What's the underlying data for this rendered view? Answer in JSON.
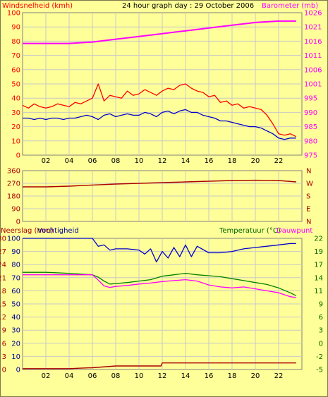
{
  "header": {
    "left_label": "Windsnelheid (kmh)",
    "title": "24 hour graph day : 29 October 2006",
    "right_label": "Barometer (mb)"
  },
  "bottom_header": {
    "left_label_1": "Neerslag (mm)",
    "left_label_2": "Vochtigheid",
    "right_label_1": "Temperatuur (°C)",
    "right_label_2": "Dauwpunt"
  },
  "colors": {
    "background": "#ffff99",
    "grid": "#c8c8c8",
    "wind_gust": "#ff0000",
    "wind_avg": "#0000cc",
    "barometer": "#ff00ff",
    "direction": "#aa0000",
    "humidity": "#0000cc",
    "temperature": "#008000",
    "dewpoint": "#ff00ff",
    "rain": "#aa0000",
    "label_left_top": "#ff0000",
    "label_right_top": "#ff00ff",
    "label_dir": "#aa0000",
    "label_rain": "#aa0000",
    "label_hum": "#000099",
    "label_temp": "#006600",
    "label_dew": "#ff00ff"
  },
  "x_ticks": [
    "02",
    "04",
    "06",
    "08",
    "10",
    "12",
    "14",
    "16",
    "18",
    "20",
    "22"
  ],
  "direction_labels": [
    "N",
    "W",
    "S",
    "E",
    "N"
  ],
  "chart_data": [
    {
      "type": "line",
      "title": "24 hour graph day : 29 October 2006",
      "xlabel": "",
      "ylabel": "Windsnelheid (kmh)",
      "y2label": "Barometer (mb)",
      "xlim": [
        0,
        24
      ],
      "ylim": [
        0,
        100
      ],
      "y_ticks": [
        0,
        10,
        20,
        30,
        40,
        50,
        60,
        70,
        80,
        90,
        100
      ],
      "y2lim": [
        975,
        1026
      ],
      "y2_ticks": [
        975,
        980,
        985,
        990,
        995,
        1001,
        1006,
        1011,
        1016,
        1021,
        1026
      ],
      "grid": true,
      "series": [
        {
          "name": "Windsnelheid gust",
          "axis": "left",
          "x": [
            0,
            0.5,
            1,
            1.5,
            2,
            2.5,
            3,
            3.5,
            4,
            4.5,
            5,
            5.5,
            6,
            6.5,
            7,
            7.5,
            8,
            8.5,
            9,
            9.5,
            10,
            10.5,
            11,
            11.5,
            12,
            12.5,
            13,
            13.5,
            14,
            14.5,
            15,
            15.5,
            16,
            16.5,
            17,
            17.5,
            18,
            18.5,
            19,
            19.5,
            20,
            20.5,
            21,
            21.5,
            22,
            22.5,
            23,
            23.5
          ],
          "values": [
            35,
            33,
            36,
            34,
            33,
            34,
            36,
            35,
            34,
            37,
            36,
            38,
            40,
            50,
            38,
            42,
            41,
            40,
            45,
            42,
            43,
            46,
            44,
            42,
            45,
            47,
            46,
            49,
            50,
            47,
            45,
            44,
            41,
            42,
            37,
            38,
            35,
            36,
            33,
            34,
            33,
            32,
            28,
            22,
            15,
            14,
            15,
            13
          ]
        },
        {
          "name": "Windsnelheid",
          "axis": "left",
          "x": [
            0,
            0.5,
            1,
            1.5,
            2,
            2.5,
            3,
            3.5,
            4,
            4.5,
            5,
            5.5,
            6,
            6.5,
            7,
            7.5,
            8,
            8.5,
            9,
            9.5,
            10,
            10.5,
            11,
            11.5,
            12,
            12.5,
            13,
            13.5,
            14,
            14.5,
            15,
            15.5,
            16,
            16.5,
            17,
            17.5,
            18,
            18.5,
            19,
            19.5,
            20,
            20.5,
            21,
            21.5,
            22,
            22.5,
            23,
            23.5
          ],
          "values": [
            26,
            26,
            25,
            26,
            25,
            26,
            26,
            25,
            26,
            26,
            27,
            28,
            27,
            25,
            28,
            29,
            27,
            28,
            29,
            28,
            28,
            30,
            29,
            27,
            30,
            31,
            29,
            31,
            32,
            30,
            30,
            28,
            27,
            26,
            24,
            24,
            23,
            22,
            21,
            20,
            20,
            19,
            17,
            15,
            12,
            11,
            12,
            12
          ]
        },
        {
          "name": "Barometer",
          "axis": "right",
          "x": [
            0,
            2,
            4,
            6,
            8,
            10,
            12,
            14,
            16,
            18,
            20,
            22,
            23.5
          ],
          "values": [
            1015,
            1015,
            1015,
            1015.5,
            1016.5,
            1017.5,
            1018.5,
            1019.5,
            1020.5,
            1021.5,
            1022.5,
            1023,
            1023
          ]
        }
      ]
    },
    {
      "type": "line",
      "xlabel": "",
      "ylabel": "",
      "xlim": [
        0,
        24
      ],
      "ylim": [
        0,
        360
      ],
      "y_ticks": [
        0,
        90,
        180,
        270,
        360
      ],
      "grid": true,
      "series": [
        {
          "name": "",
          "x": [
            0,
            2,
            4,
            6,
            8,
            10,
            12,
            14,
            16,
            18,
            20,
            22,
            23.5
          ],
          "values": [
            245,
            245,
            250,
            258,
            265,
            270,
            275,
            280,
            285,
            290,
            292,
            290,
            280
          ]
        }
      ]
    },
    {
      "type": "line",
      "xlabel": "",
      "ylabel": "Vochtigheid",
      "y2label": "Temperatuur (°C)",
      "xlim": [
        0,
        24
      ],
      "ylim": [
        0,
        100
      ],
      "y_ticks": [
        0,
        10,
        20,
        30,
        40,
        50,
        60,
        70,
        80,
        90,
        100
      ],
      "rain_ticks": [
        0,
        3,
        6,
        9,
        12,
        15,
        18,
        21,
        24,
        27,
        30
      ],
      "y2lim": [
        -5,
        22
      ],
      "y2_ticks": [
        -5,
        -2,
        0,
        3,
        6,
        9,
        11,
        14,
        17,
        19,
        22
      ],
      "grid": true,
      "series": [
        {
          "name": "Neerslag (mm)",
          "axis": "rain",
          "x": [
            0,
            4,
            5,
            6,
            8,
            10,
            11.9,
            12,
            14,
            16,
            18,
            20,
            22,
            23.5
          ],
          "values": [
            0.2,
            0.2,
            0.3,
            0.4,
            0.8,
            0.8,
            0.8,
            1.5,
            1.5,
            1.5,
            1.5,
            1.5,
            1.5,
            1.5
          ]
        },
        {
          "name": "Vochtigheid",
          "axis": "left",
          "x": [
            0,
            1,
            2,
            3,
            4,
            5,
            6,
            6.5,
            7,
            7.5,
            8,
            9,
            10,
            10.5,
            11,
            11.5,
            12,
            12.5,
            13,
            13.5,
            14,
            14.5,
            15,
            16,
            17,
            18,
            19,
            20,
            21,
            22,
            23,
            23.5
          ],
          "values": [
            100,
            100,
            100,
            100,
            100,
            100,
            100,
            94,
            95,
            91,
            92,
            92,
            91,
            88,
            92,
            82,
            90,
            85,
            93,
            86,
            95,
            86,
            94,
            89,
            89,
            90,
            92,
            93,
            94,
            95,
            96,
            96
          ]
        },
        {
          "name": "Temperatuur (°C)",
          "axis": "right",
          "x": [
            0,
            2,
            4,
            6,
            6.5,
            7,
            7.5,
            8,
            9,
            10,
            11,
            12,
            13,
            14,
            15,
            16,
            17,
            18,
            19,
            20,
            21,
            22,
            23,
            23.5
          ],
          "values": [
            15,
            15,
            14.8,
            14.5,
            14,
            13.2,
            12.6,
            12.7,
            12.9,
            13.2,
            13.5,
            14.2,
            14.5,
            14.8,
            14.5,
            14.3,
            14.1,
            13.7,
            13.3,
            12.9,
            12.5,
            11.8,
            10.8,
            10.2
          ]
        },
        {
          "name": "Dauwpunt",
          "axis": "right",
          "x": [
            0,
            6,
            6.5,
            7,
            7.5,
            8,
            9,
            10,
            11,
            12,
            13,
            14,
            15,
            16,
            17,
            18,
            19,
            20,
            21,
            22,
            23,
            23.5
          ],
          "values": [
            14.5,
            14.5,
            13.4,
            12.2,
            11.9,
            12.1,
            12.3,
            12.6,
            12.8,
            13.1,
            13.3,
            13.5,
            13.2,
            12.4,
            12,
            11.8,
            12,
            11.6,
            11.2,
            10.8,
            10,
            9.8
          ]
        }
      ]
    }
  ]
}
